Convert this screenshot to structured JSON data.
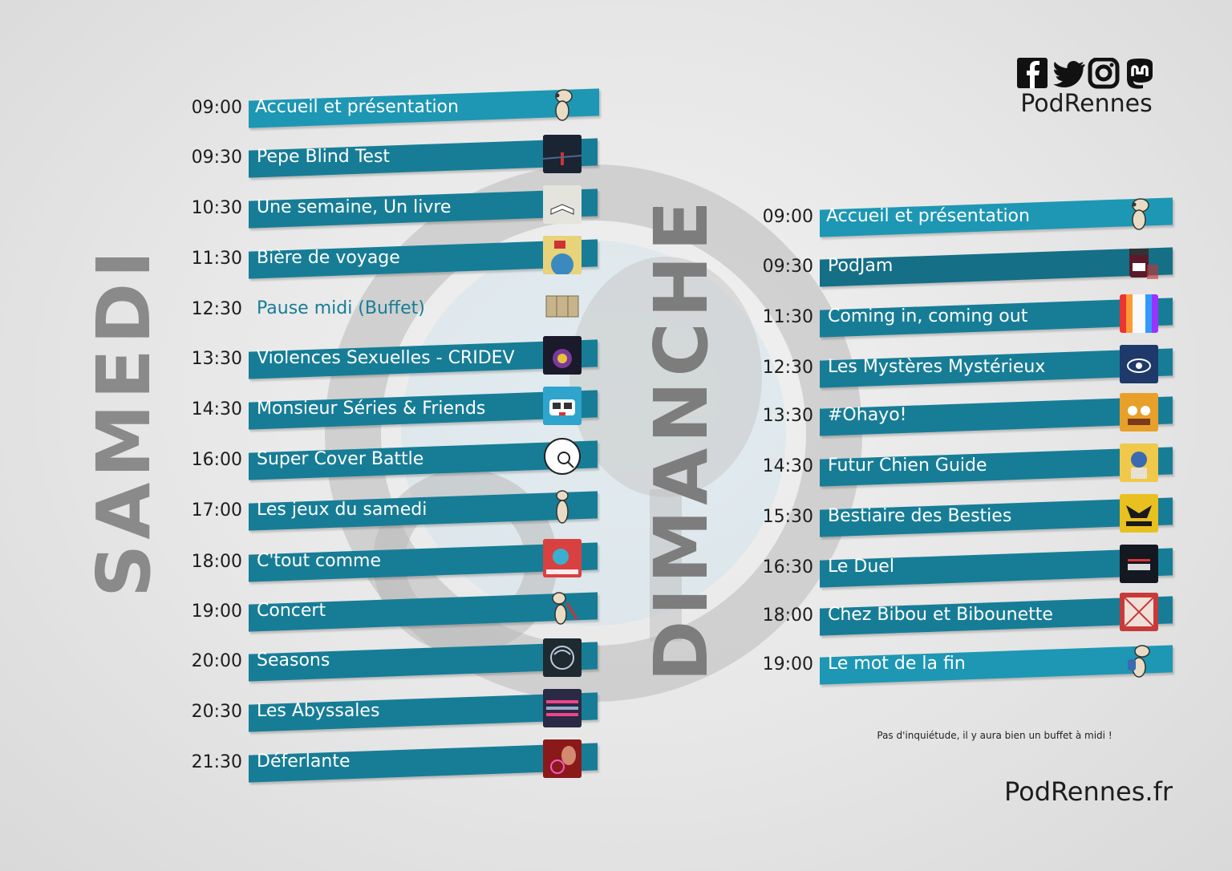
{
  "brand": {
    "handle": "PodRennes",
    "website": "PodRennes.fr"
  },
  "social_icons": [
    "facebook-icon",
    "twitter-icon",
    "instagram-icon",
    "mastodon-icon"
  ],
  "colors": {
    "bar": "#177d96",
    "bar_light": "#1d97b4",
    "title": "#8a8a8a"
  },
  "samedi": {
    "title": "SAMEDI",
    "items": [
      {
        "time": "09:00",
        "title": "Accueil et présentation",
        "icon": "mascot-icon"
      },
      {
        "time": "09:30",
        "title": "Pepe Blind Test",
        "icon": "podcast-cover-icon"
      },
      {
        "time": "10:30",
        "title": "Une semaine, Un livre",
        "icon": "book-cover-icon"
      },
      {
        "time": "11:30",
        "title": "Bière de voyage",
        "icon": "podcast-cover-icon"
      },
      {
        "time": "12:30",
        "title": "Pause midi (Buffet)",
        "icon": "buffet-icon"
      },
      {
        "time": "13:30",
        "title": "Violences Sexuelles - CRIDEV",
        "icon": "podcast-cover-icon"
      },
      {
        "time": "14:30",
        "title": "Monsieur Séries & Friends",
        "icon": "podcast-cover-icon"
      },
      {
        "time": "16:00",
        "title": "Super Cover Battle",
        "icon": "podcast-cover-icon"
      },
      {
        "time": "17:00",
        "title": "Les jeux du samedi",
        "icon": "mascot-icon"
      },
      {
        "time": "18:00",
        "title": "C'tout comme",
        "icon": "podcast-cover-icon"
      },
      {
        "time": "19:00",
        "title": "Concert",
        "icon": "mascot-icon"
      },
      {
        "time": "20:00",
        "title": "Seasons",
        "icon": "podcast-cover-icon"
      },
      {
        "time": "20:30",
        "title": "Les Abyssales",
        "icon": "podcast-cover-icon"
      },
      {
        "time": "21:30",
        "title": "Déferlante",
        "icon": "podcast-cover-icon"
      }
    ]
  },
  "dimanche": {
    "title": "DIMANCHE",
    "items": [
      {
        "time": "09:00",
        "title": "Accueil et présentation",
        "icon": "mascot-icon"
      },
      {
        "time": "09:30",
        "title": "PodJam",
        "icon": "jam-jar-icon"
      },
      {
        "time": "11:30",
        "title": "Coming in, coming out",
        "icon": "podcast-cover-icon"
      },
      {
        "time": "12:30",
        "title": "Les Mystères Mystérieux",
        "icon": "podcast-cover-icon"
      },
      {
        "time": "13:30",
        "title": "#Ohayo!",
        "icon": "podcast-cover-icon"
      },
      {
        "time": "14:30",
        "title": "Futur Chien Guide",
        "icon": "podcast-cover-icon"
      },
      {
        "time": "15:30",
        "title": "Bestiaire des Besties",
        "icon": "podcast-cover-icon"
      },
      {
        "time": "16:30",
        "title": "Le Duel",
        "icon": "podcast-cover-icon"
      },
      {
        "time": "18:00",
        "title": "Chez Bibou et Bibounette",
        "icon": "podcast-cover-icon"
      },
      {
        "time": "19:00",
        "title": "Le mot de la fin",
        "icon": "mascot-icon"
      }
    ]
  },
  "note": "Pas d'inquiétude, il y aura bien un buffet à midi !"
}
